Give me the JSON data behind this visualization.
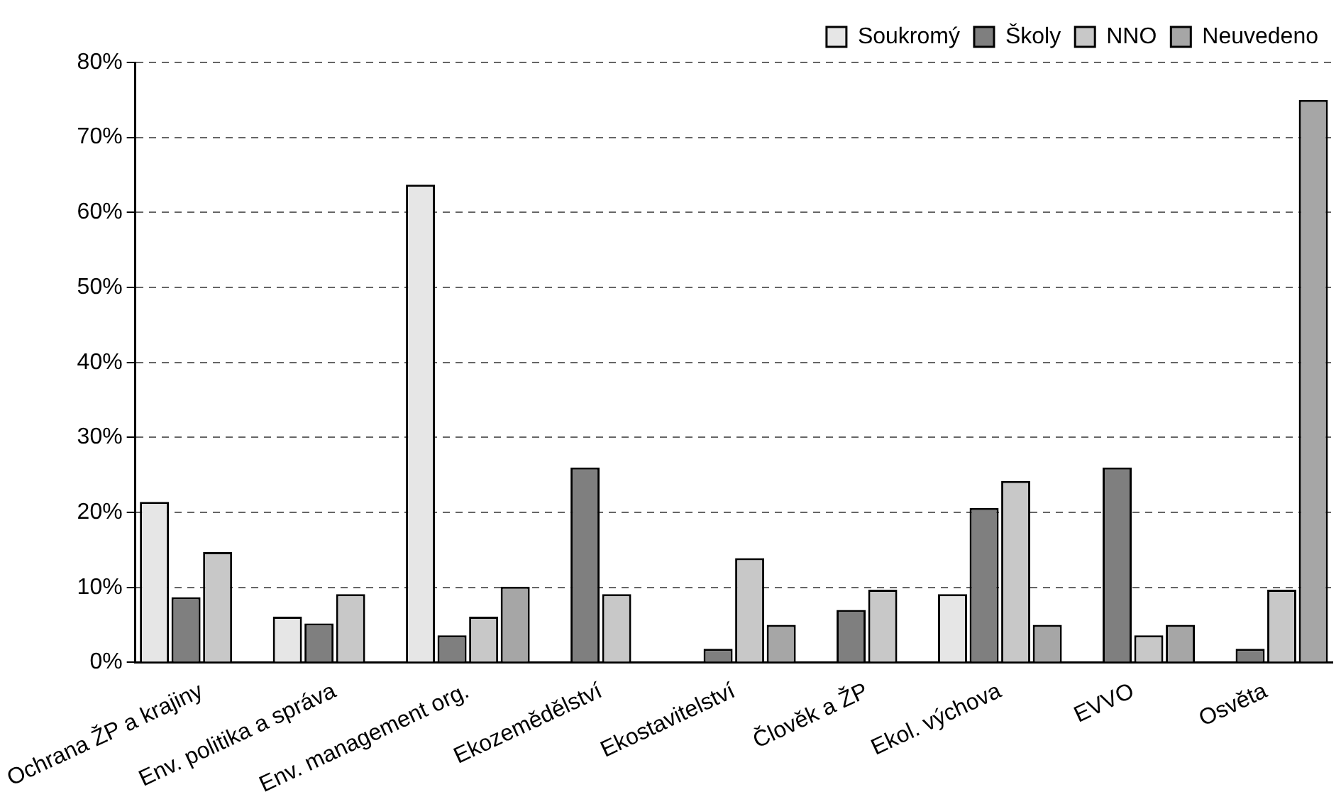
{
  "chart_data": {
    "type": "bar",
    "categories": [
      "Ochrana ŽP a krajiny",
      "Env. politika a správa",
      "Env. management org.",
      "Ekozemědělství",
      "Ekostavitelství",
      "Člověk a ŽP",
      "Ekol. výchova",
      "EVVO",
      "Osvěta"
    ],
    "series": [
      {
        "name": "Soukromý",
        "color": "#e6e6e6",
        "values": [
          21.4,
          6.1,
          63.7,
          null,
          null,
          null,
          9.1,
          null,
          null
        ]
      },
      {
        "name": "Školy",
        "color": "#7f7f7f",
        "values": [
          8.7,
          5.2,
          3.6,
          26,
          1.8,
          7,
          20.6,
          26,
          1.8
        ]
      },
      {
        "name": "NNO",
        "color": "#c8c8c8",
        "values": [
          14.7,
          9.1,
          6.1,
          9.1,
          13.9,
          9.7,
          24.2,
          3.6,
          9.7
        ]
      },
      {
        "name": "Neuvedeno",
        "color": "#a6a6a6",
        "values": [
          null,
          null,
          10.1,
          null,
          5,
          null,
          5,
          5,
          75
        ]
      }
    ],
    "ylim": [
      0,
      80
    ],
    "yticks": [
      {
        "value": 0,
        "label": "0%"
      },
      {
        "value": 10,
        "label": "10%"
      },
      {
        "value": 20,
        "label": "20%"
      },
      {
        "value": 30,
        "label": "30%"
      },
      {
        "value": 40,
        "label": "40%"
      },
      {
        "value": 50,
        "label": "50%"
      },
      {
        "value": 60,
        "label": "60%"
      },
      {
        "value": 70,
        "label": "70%"
      },
      {
        "value": 80,
        "label": "80%"
      }
    ],
    "grid": "y",
    "legend": "top right"
  }
}
